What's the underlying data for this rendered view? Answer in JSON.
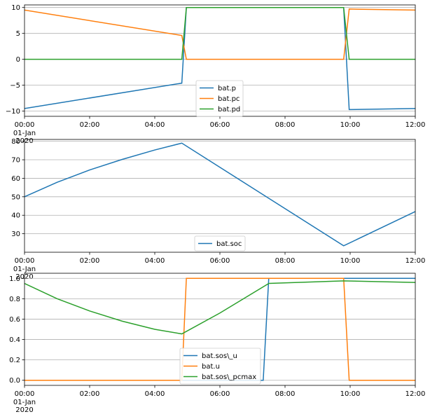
{
  "chart_data": [
    {
      "type": "line",
      "x_ticks": [
        "00:00",
        "02:00",
        "04:00",
        "06:00",
        "08:00",
        "10:00",
        "12:00"
      ],
      "x_tick_sub": [
        "01-Jan",
        "2020"
      ],
      "ylim": [
        -11,
        10.5
      ],
      "y_ticks": [
        -10,
        -5,
        0,
        5,
        10
      ],
      "grid": "horizontal",
      "legend_placement": "lower-center",
      "series": [
        {
          "name": "bat.p",
          "color": "#1f77b4",
          "x": [
            0,
            4.83,
            4.97,
            9.8,
            9.97,
            12
          ],
          "y": [
            -9.5,
            -4.6,
            10,
            10,
            -9.7,
            -9.5
          ]
        },
        {
          "name": "bat.pc",
          "color": "#ff7f0e",
          "x": [
            0,
            4.83,
            4.97,
            9.8,
            9.97,
            12
          ],
          "y": [
            9.5,
            4.6,
            0,
            0,
            9.7,
            9.5
          ]
        },
        {
          "name": "bat.pd",
          "color": "#2ca02c",
          "x": [
            0,
            4.83,
            4.97,
            9.8,
            9.97,
            12
          ],
          "y": [
            0,
            0,
            10,
            10,
            0,
            0
          ]
        }
      ]
    },
    {
      "type": "line",
      "x_ticks": [
        "00:00",
        "02:00",
        "04:00",
        "06:00",
        "08:00",
        "10:00",
        "12:00"
      ],
      "x_tick_sub": [
        "01-Jan",
        "2020"
      ],
      "ylim": [
        20,
        81
      ],
      "y_ticks": [
        30,
        40,
        50,
        60,
        70,
        80
      ],
      "grid": "horizontal",
      "legend_placement": "lower-center",
      "series": [
        {
          "name": "bat.soc",
          "color": "#1f77b4",
          "x": [
            0,
            1,
            2,
            3,
            4,
            4.83,
            9.8,
            12
          ],
          "y": [
            50,
            57.8,
            64.5,
            70.2,
            75.3,
            79,
            23.5,
            42
          ]
        }
      ]
    },
    {
      "type": "line",
      "x_ticks": [
        "00:00",
        "02:00",
        "04:00",
        "06:00",
        "08:00",
        "10:00",
        "12:00"
      ],
      "x_tick_sub": [
        "01-Jan",
        "2020"
      ],
      "ylim": [
        -0.05,
        1.05
      ],
      "y_ticks": [
        0.0,
        0.2,
        0.4,
        0.6,
        0.8,
        1.0
      ],
      "y_tick_labels": [
        "0.0",
        "0.2",
        "0.4",
        "0.6",
        "0.8",
        "1.0"
      ],
      "grid": "horizontal",
      "legend_placement": "lower-center",
      "series": [
        {
          "name": "bat.sos\\_u",
          "color": "#1f77b4",
          "x": [
            0,
            7.33,
            7.5,
            12
          ],
          "y": [
            0,
            0,
            1,
            1
          ]
        },
        {
          "name": "bat.u",
          "color": "#ff7f0e",
          "x": [
            0,
            4.83,
            4.97,
            9.8,
            9.97,
            12
          ],
          "y": [
            0,
            0,
            1,
            1,
            0,
            0
          ]
        },
        {
          "name": "bat.sos\\_pcmax",
          "color": "#2ca02c",
          "x": [
            0,
            1,
            2,
            3,
            4,
            4.83,
            6,
            7.5,
            9.8,
            12
          ],
          "y": [
            0.95,
            0.8,
            0.68,
            0.58,
            0.5,
            0.455,
            0.66,
            0.95,
            0.975,
            0.96
          ]
        }
      ]
    }
  ]
}
